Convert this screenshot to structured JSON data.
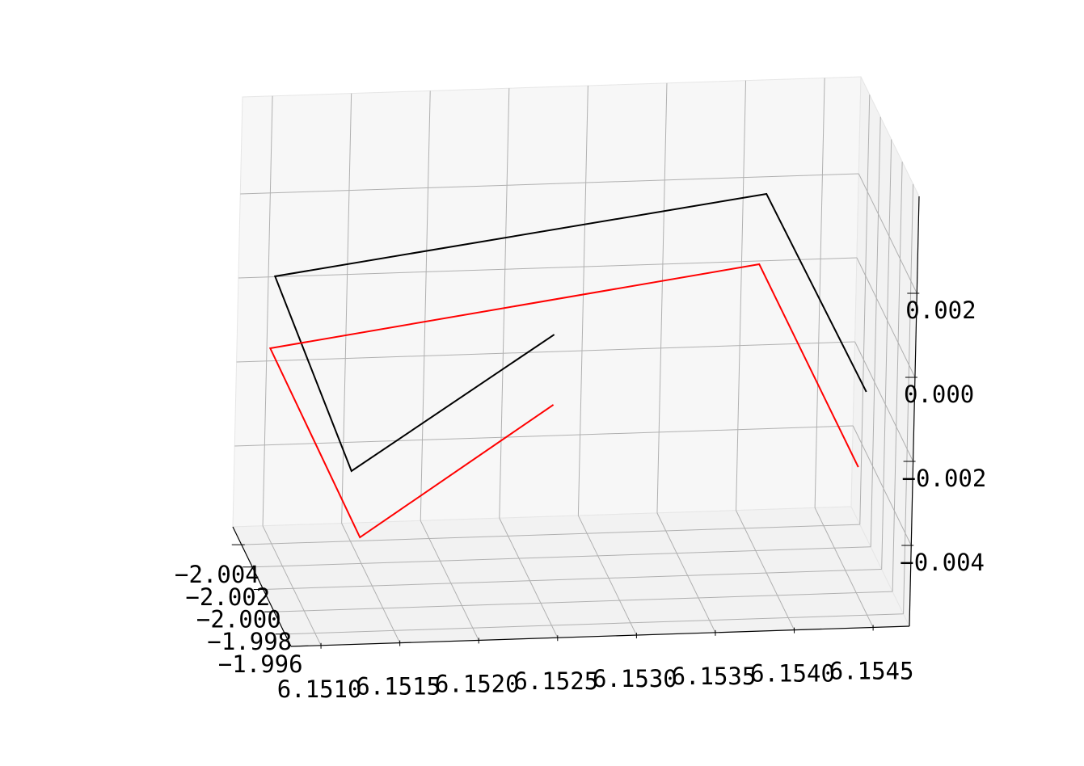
{
  "chart_data": {
    "type": "line3d",
    "xlim": [
      6.15081,
      6.15473
    ],
    "ylim": [
      -2.0056,
      -1.9949
    ],
    "zlim": [
      -0.005923,
      0.004308
    ],
    "xticks": [
      {
        "value": 6.151,
        "label": "6.1510"
      },
      {
        "value": 6.1515,
        "label": "6.1515"
      },
      {
        "value": 6.152,
        "label": "6.1520"
      },
      {
        "value": 6.1525,
        "label": "6.1525"
      },
      {
        "value": 6.153,
        "label": "6.1530"
      },
      {
        "value": 6.1535,
        "label": "6.1535"
      },
      {
        "value": 6.154,
        "label": "6.1540"
      },
      {
        "value": 6.1545,
        "label": "6.1545"
      }
    ],
    "yticks": [
      {
        "value": -2.004,
        "label": "−2.004"
      },
      {
        "value": -2.002,
        "label": "−2.002"
      },
      {
        "value": -2.0,
        "label": "−2.000"
      },
      {
        "value": -1.998,
        "label": "−1.998"
      },
      {
        "value": -1.996,
        "label": "−1.996"
      }
    ],
    "zticks": [
      {
        "value": -0.004,
        "label": "−0.004"
      },
      {
        "value": -0.002,
        "label": "−0.002"
      },
      {
        "value": 0,
        "label": "0.000"
      },
      0.002
    ],
    "grid": true,
    "series": [
      {
        "color": "#000000",
        "x": [
          6.15258,
          6.15131,
          6.15081,
          6.15399,
          6.15449
        ],
        "y": [
          -1.99891,
          -1.99882,
          -1.99917,
          -2.00123,
          -1.99675
        ],
        "z": [
          0.000216,
          -0.002854,
          0.00175,
          0.002773,
          -0.000808
        ]
      },
      {
        "color": "#ff0000",
        "x": [
          6.15258,
          6.15138,
          6.15078,
          6.15395,
          6.15443
        ],
        "y": [
          -1.99878,
          -1.99901,
          -1.9989,
          -2.00111,
          -1.9962
        ],
        "z": [
          -0.001421,
          -0.004491,
          0.000113,
          0.001136,
          -0.002444
        ]
      }
    ]
  }
}
